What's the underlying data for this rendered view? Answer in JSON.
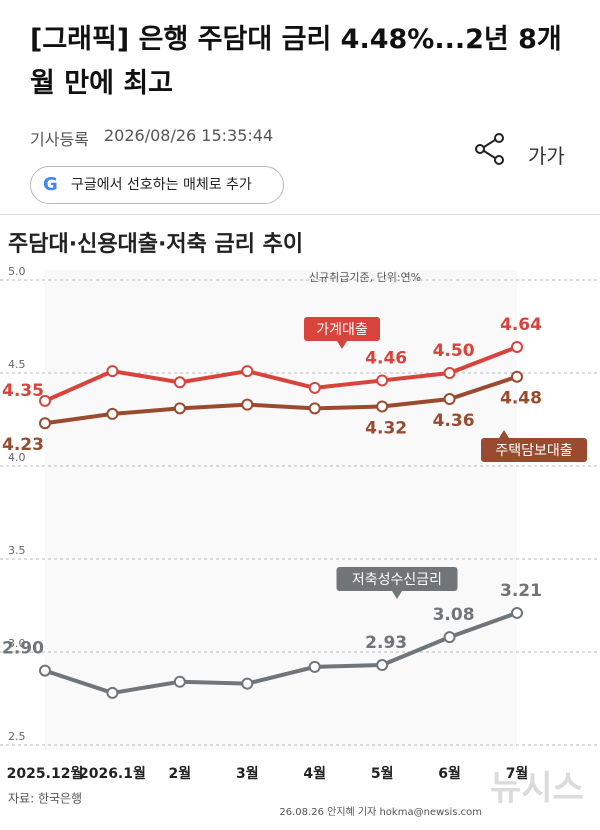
{
  "header": {
    "headline": "[그래픽] 은행 주담대 금리 4.48%...2년 8개월 만에 최고",
    "date_label": "기사등록",
    "date": "2026/08/26 15:35:44",
    "font_button": "가가",
    "google_button": "구글에서 선호하는 매체로 추가"
  },
  "chart_data": {
    "type": "line",
    "title": "주담대·신용대출·저축 금리 추이",
    "subtitle": "신규취급기준, 단위:연%",
    "categories": [
      "2025.12월",
      "2026.1월",
      "2월",
      "3월",
      "4월",
      "5월",
      "6월",
      "7월"
    ],
    "series": [
      {
        "name": "가계대출",
        "color": "#d8433c",
        "values": [
          4.35,
          4.51,
          4.45,
          4.51,
          4.42,
          4.46,
          4.5,
          4.64
        ],
        "value_labels": [
          "4.35",
          null,
          null,
          null,
          null,
          "4.46",
          "4.50",
          "4.64"
        ]
      },
      {
        "name": "주택담보대출",
        "color": "#9a4b2f",
        "values": [
          4.23,
          4.28,
          4.31,
          4.33,
          4.31,
          4.32,
          4.36,
          4.48
        ],
        "value_labels": [
          "4.23",
          null,
          null,
          null,
          null,
          "4.32",
          "4.36",
          "4.48"
        ]
      },
      {
        "name": "저축성수신금리",
        "color": "#6f7579",
        "values": [
          2.9,
          2.78,
          2.84,
          2.83,
          2.92,
          2.93,
          3.08,
          3.21
        ],
        "value_labels": [
          "2.90",
          null,
          null,
          null,
          null,
          "2.93",
          "3.08",
          "3.21"
        ]
      }
    ],
    "ylim": [
      2.5,
      5.0
    ],
    "yticks": [
      2.5,
      {
        "value": 3,
        "label": "3.0"
      },
      3.5,
      {
        "value": 4,
        "label": "4.0"
      },
      4.5,
      {
        "value": 5,
        "label": "5.0"
      }
    ],
    "grid": true,
    "source": "자료: 한국은행",
    "credit": "26.08.26 안지혜 기자 hokma@newsis.com",
    "watermark": "뉴시스"
  }
}
